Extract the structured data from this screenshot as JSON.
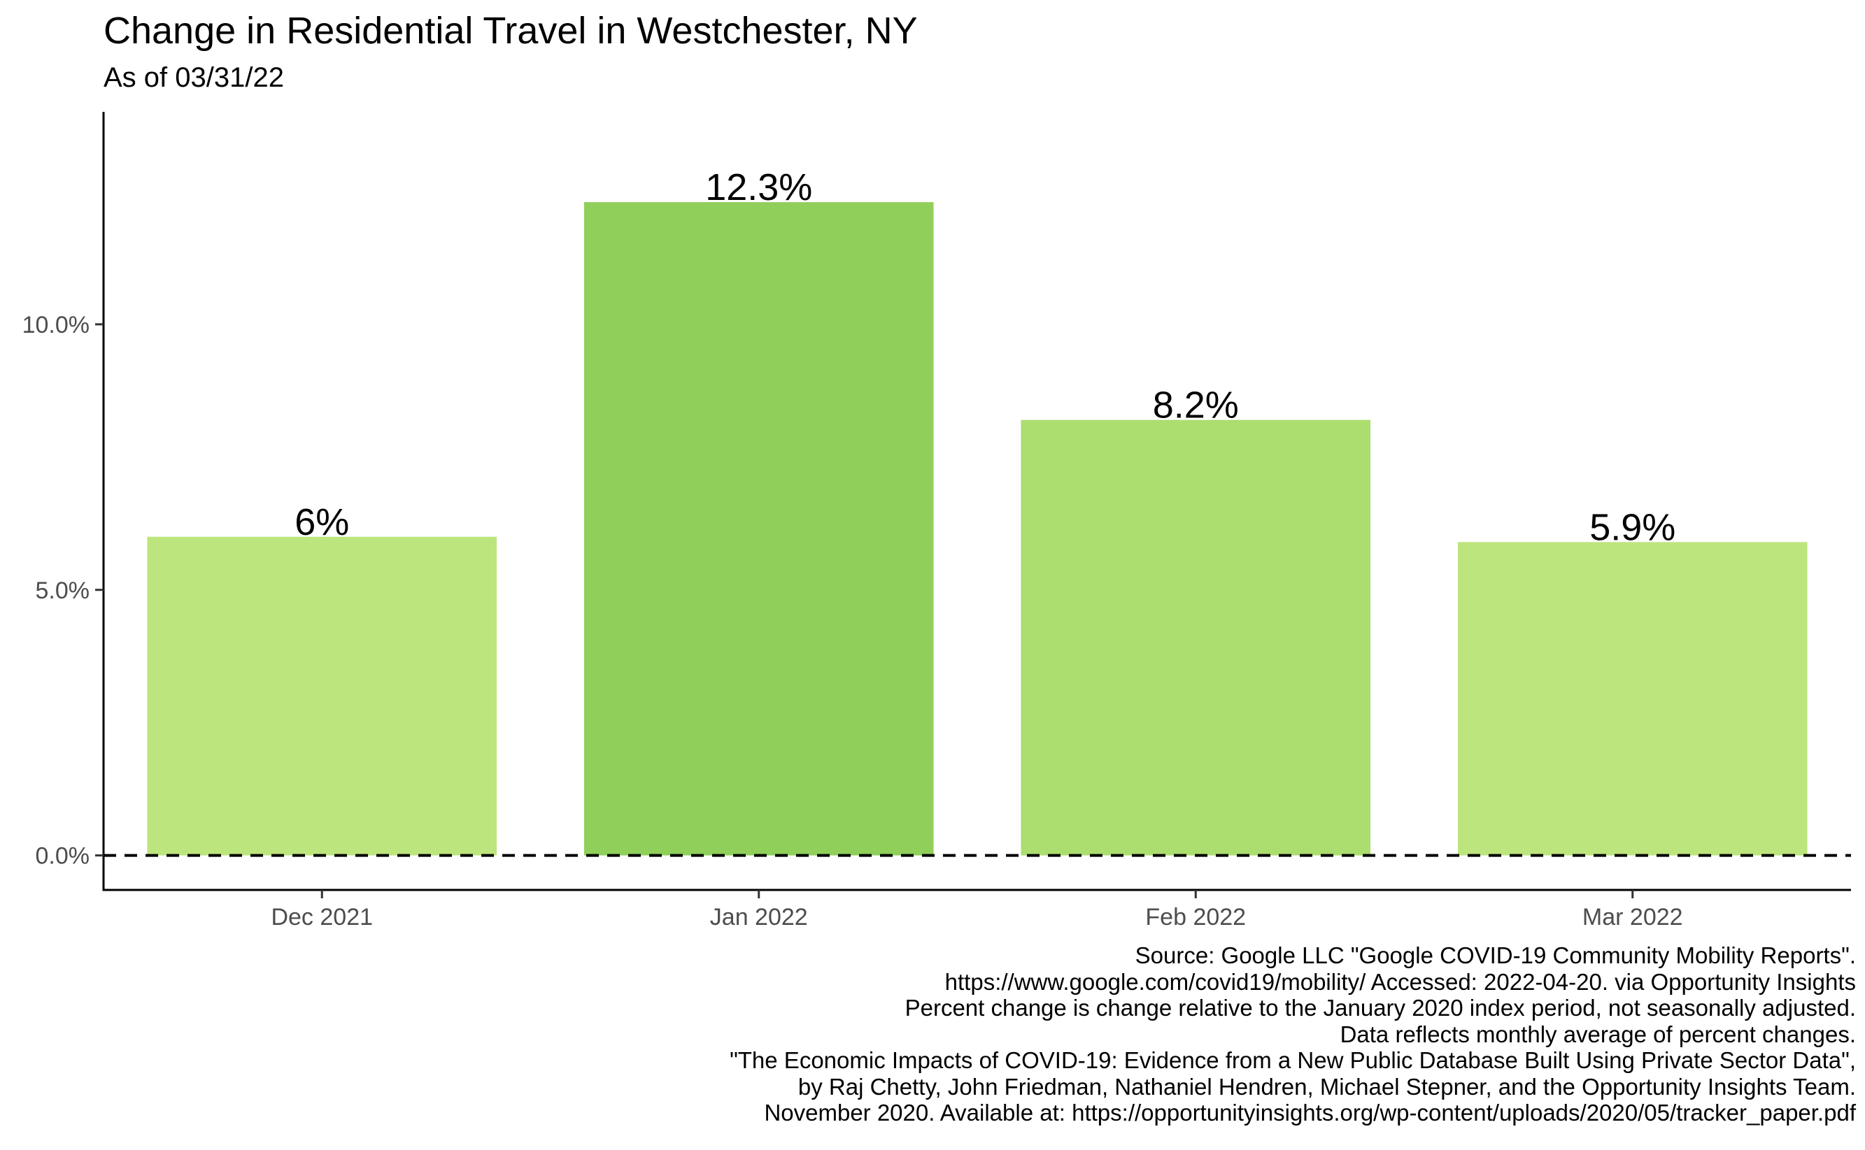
{
  "chart_data": {
    "type": "bar",
    "title": "Change in Residential Travel in Westchester, NY",
    "subtitle": "As of 03/31/22",
    "xlabel": "",
    "ylabel": "",
    "categories": [
      "Dec 2021",
      "Jan 2022",
      "Feb 2022",
      "Mar 2022"
    ],
    "values": [
      6.0,
      12.3,
      8.2,
      5.9
    ],
    "data_labels": [
      "6%",
      "12.3%",
      "8.2%",
      "5.9%"
    ],
    "colors": [
      "#bde57e",
      "#8fcf5a",
      "#acdd6f",
      "#bde57e"
    ],
    "ylim": [
      -0.65,
      14.0
    ],
    "yticks": [
      0,
      5,
      10
    ],
    "ytick_labels": [
      "0.0%",
      "5.0%",
      "10.0%"
    ],
    "reference_line": {
      "y": 0,
      "style": "dashed"
    },
    "grid": false,
    "legend": "none"
  },
  "caption_lines": [
    "Source: Google LLC \"Google COVID-19 Community Mobility Reports\".",
    "https://www.google.com/covid19/mobility/ Accessed: 2022-04-20. via Opportunity Insights",
    "Percent change is change relative to the January 2020 index period, not seasonally adjusted.",
    "Data reflects monthly average of percent changes.",
    "\"The Economic Impacts of COVID-19: Evidence from a New Public Database Built Using Private Sector Data\",",
    "by Raj Chetty, John Friedman, Nathaniel Hendren, Michael Stepner, and the Opportunity Insights Team.",
    "November 2020. Available at: https://opportunityinsights.org/wp-content/uploads/2020/05/tracker_paper.pdf"
  ]
}
